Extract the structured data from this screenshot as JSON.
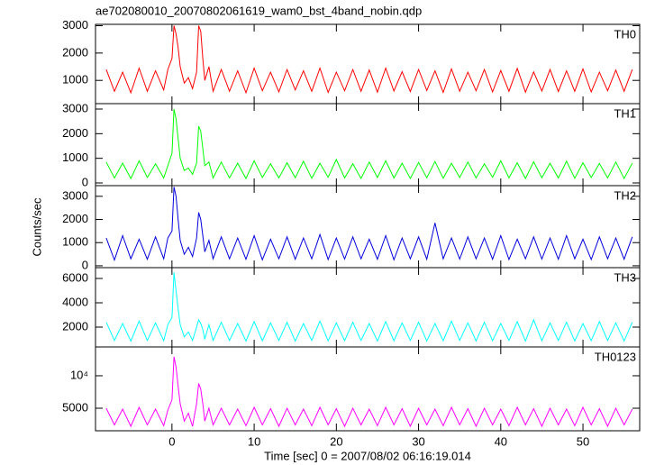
{
  "chart_data": {
    "type": "line",
    "title": "ae702080010_20070802061619_wam0_bst_4band_nobin.qdp",
    "xlabel": "Time [sec] 0 = 2007/08/02 06:16:19.014",
    "ylabel": "Counts/sec",
    "xlim": [
      -9.3,
      56.9
    ],
    "xticks": [
      0,
      10,
      20,
      30,
      40,
      50
    ],
    "x": [
      -8,
      -7,
      -6,
      -5,
      -4,
      -3,
      -2,
      -1,
      -0.5,
      0,
      0.25,
      0.5,
      0.75,
      1,
      1.5,
      2,
      2.5,
      3,
      3.25,
      3.5,
      3.75,
      4,
      4.5,
      5,
      6,
      7,
      8,
      9,
      10,
      11,
      12,
      13,
      14,
      15,
      16,
      17,
      18,
      19,
      20,
      21,
      22,
      23,
      24,
      25,
      26,
      27,
      28,
      29,
      30,
      31,
      32,
      33,
      34,
      35,
      36,
      37,
      38,
      39,
      40,
      41,
      42,
      43,
      44,
      45,
      46,
      47,
      48,
      49,
      50,
      51,
      52,
      53,
      54,
      55,
      56
    ],
    "series": [
      {
        "name": "TH0",
        "color": "#ff0000",
        "ylim": [
          150,
          3050
        ],
        "yticks": [
          1000,
          2000,
          3000
        ],
        "log": false,
        "values": [
          1400,
          600,
          1300,
          550,
          1450,
          600,
          1350,
          650,
          1400,
          1800,
          3000,
          2700,
          2200,
          1500,
          900,
          1100,
          700,
          1300,
          3000,
          2800,
          1800,
          1000,
          1500,
          600,
          1400,
          600,
          1350,
          550,
          1450,
          620,
          1300,
          580,
          1400,
          650,
          1350,
          600,
          1450,
          560,
          1300,
          620,
          1400,
          600,
          1380,
          570,
          1450,
          610,
          1320,
          590,
          1400,
          630,
          1350,
          560,
          1420,
          600,
          1300,
          620,
          1400,
          580,
          1360,
          600,
          1440,
          570,
          1310,
          610,
          1400,
          590,
          1350,
          600,
          1420,
          580,
          1300,
          620,
          1380,
          600,
          1400
        ]
      },
      {
        "name": "TH1",
        "color": "#00ff00",
        "ylim": [
          -110,
          3220
        ],
        "yticks": [
          0,
          1000,
          2000,
          3000
        ],
        "log": false,
        "values": [
          850,
          200,
          800,
          180,
          900,
          220,
          780,
          200,
          700,
          1200,
          3000,
          2600,
          1800,
          1000,
          500,
          600,
          350,
          800,
          2300,
          2100,
          1400,
          700,
          850,
          200,
          850,
          200,
          800,
          180,
          900,
          220,
          780,
          200,
          820,
          210,
          880,
          190,
          800,
          230,
          950,
          200,
          780,
          180,
          850,
          220,
          900,
          200,
          800,
          180,
          830,
          210,
          870,
          190,
          800,
          220,
          850,
          200,
          780,
          230,
          900,
          200,
          820,
          180,
          860,
          210,
          800,
          200,
          880,
          190,
          820,
          220,
          790,
          200,
          850,
          180,
          800
        ]
      },
      {
        "name": "TH2",
        "color": "#0000dd",
        "ylim": [
          -80,
          3460
        ],
        "yticks": [
          0,
          1000,
          2000,
          3000
        ],
        "log": false,
        "values": [
          1200,
          250,
          1300,
          300,
          1150,
          280,
          1250,
          300,
          1200,
          1500,
          3400,
          3000,
          2000,
          1100,
          500,
          800,
          400,
          1200,
          2300,
          2000,
          1300,
          600,
          1100,
          300,
          1250,
          300,
          1200,
          280,
          1300,
          260,
          1150,
          300,
          1250,
          280,
          1200,
          300,
          1350,
          270,
          1200,
          290,
          1250,
          300,
          1150,
          280,
          1300,
          260,
          1200,
          300,
          1250,
          280,
          1850,
          300,
          1200,
          290,
          1250,
          300,
          1200,
          280,
          1300,
          270,
          1150,
          300,
          1250,
          290,
          1200,
          280,
          1300,
          300,
          1150,
          270,
          1250,
          300,
          1200,
          280,
          1250
        ]
      },
      {
        "name": "TH3",
        "color": "#00ffff",
        "ylim": [
          370,
          6890
        ],
        "yticks": [
          2000,
          4000,
          6000
        ],
        "log": false,
        "values": [
          2400,
          900,
          2300,
          850,
          2500,
          900,
          2350,
          880,
          2200,
          2800,
          6500,
          5000,
          3500,
          2200,
          1200,
          1600,
          900,
          2000,
          2600,
          2300,
          1800,
          1000,
          2200,
          900,
          2400,
          900,
          2300,
          850,
          2450,
          880,
          2350,
          900,
          2400,
          860,
          2300,
          900,
          2500,
          870,
          2350,
          880,
          2400,
          900,
          2300,
          860,
          2450,
          880,
          2350,
          900,
          2400,
          860,
          2300,
          880,
          2500,
          900,
          2350,
          870,
          2400,
          880,
          2300,
          900,
          2450,
          860,
          2600,
          880,
          2350,
          900,
          2400,
          870,
          2300,
          880,
          2450,
          900,
          2350,
          860,
          2400
        ]
      },
      {
        "name": "TH0123",
        "color": "#ff00ff",
        "ylim": [
          3090,
          18500
        ],
        "yticks": [
          5000,
          {
            "value": 10000,
            "label": "10⁴"
          }
        ],
        "log": true,
        "values": [
          5000,
          3500,
          4900,
          3400,
          5100,
          3500,
          4900,
          3450,
          4800,
          6000,
          15000,
          12000,
          8000,
          5500,
          3800,
          4500,
          3400,
          5500,
          8500,
          7500,
          5500,
          3800,
          5000,
          3500,
          5000,
          3500,
          4900,
          3450,
          5100,
          3500,
          4950,
          3400,
          5000,
          3500,
          4900,
          3450,
          5100,
          3500,
          4950,
          3400,
          5000,
          3500,
          4900,
          3450,
          5100,
          3500,
          4950,
          3400,
          5000,
          3500,
          4900,
          3450,
          5100,
          3500,
          4950,
          3400,
          5000,
          3500,
          4900,
          3450,
          5100,
          3500,
          4950,
          3400,
          5000,
          3500,
          4900,
          3450,
          5100,
          3500,
          4950,
          3400,
          5000,
          3500,
          4900
        ]
      }
    ]
  }
}
